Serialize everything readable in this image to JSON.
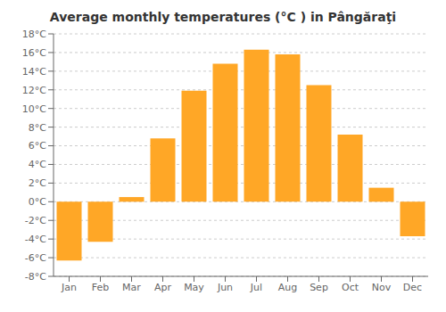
{
  "chart_data": {
    "type": "bar",
    "title": "Average monthly temperatures (°C ) in Pângăraţi",
    "categories": [
      "Jan",
      "Feb",
      "Mar",
      "Apr",
      "May",
      "Jun",
      "Jul",
      "Aug",
      "Sep",
      "Oct",
      "Nov",
      "Dec"
    ],
    "values": [
      -6.3,
      -4.3,
      0.5,
      6.8,
      11.9,
      14.8,
      16.3,
      15.8,
      12.5,
      7.2,
      1.5,
      -3.7
    ],
    "color": "#FFA726",
    "ylim": [
      -8,
      18
    ],
    "yticks": [
      {
        "value": -8,
        "label": "-8°C"
      },
      {
        "value": -6,
        "label": "-6°C"
      },
      {
        "value": -4,
        "label": "-4°C"
      },
      {
        "value": -2,
        "label": "-2°C"
      },
      {
        "value": 0,
        "label": "0°C"
      },
      {
        "value": 2,
        "label": "2°C"
      },
      {
        "value": 4,
        "label": "4°C"
      },
      {
        "value": 6,
        "label": "6°C"
      },
      {
        "value": 8,
        "label": "8°C"
      },
      {
        "value": 10,
        "label": "10°C"
      },
      {
        "value": 12,
        "label": "12°C"
      },
      {
        "value": 14,
        "label": "14°C"
      },
      {
        "value": 16,
        "label": "16°C"
      },
      {
        "value": 18,
        "label": "18°C"
      }
    ],
    "grid": true
  }
}
